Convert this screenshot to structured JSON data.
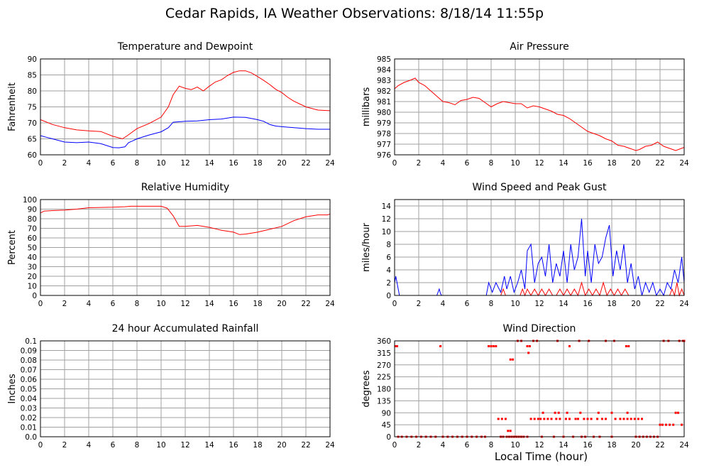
{
  "title": "Cedar Rapids, IA Weather Observations: 8/18/14 11:55p",
  "bottom_xlabel": "Local Time (hour)",
  "colors": {
    "series_red": "#ff0000",
    "series_blue": "#0000ff",
    "grid": "#a0a0a0"
  },
  "chart_data": [
    {
      "id": "temp",
      "type": "line",
      "title": "Temperature and Dewpoint",
      "xlabel": "",
      "ylabel": "Fahrenheit",
      "xlim": [
        0,
        24
      ],
      "ylim": [
        60,
        90
      ],
      "xticks": [
        0,
        2,
        4,
        6,
        8,
        10,
        12,
        14,
        16,
        18,
        20,
        22,
        24
      ],
      "yticks": [
        60,
        65,
        70,
        75,
        80,
        85,
        90
      ],
      "grid": true,
      "series": [
        {
          "color": "#ff0000",
          "x": [
            0,
            1,
            2,
            3,
            4,
            5,
            6,
            6.8,
            7.2,
            8,
            9,
            10,
            10.6,
            11,
            11.5,
            12,
            12.5,
            13,
            13.5,
            14,
            14.5,
            15,
            15.5,
            16,
            16.5,
            17,
            17.5,
            18,
            18.5,
            19,
            19.5,
            20,
            20.5,
            21,
            22,
            23,
            24
          ],
          "y": [
            71,
            69.5,
            68.5,
            67.8,
            67.5,
            67.3,
            65.8,
            65,
            66,
            68.2,
            69.8,
            71.8,
            75,
            78.8,
            81.5,
            80.8,
            80.4,
            81.2,
            80,
            81.5,
            82.8,
            83.5,
            84.8,
            85.8,
            86.3,
            86.3,
            85.6,
            84.5,
            83.3,
            82,
            80.5,
            79.5,
            78,
            76.8,
            75,
            74,
            73.8
          ]
        },
        {
          "color": "#0000ff",
          "x": [
            0,
            0.5,
            1,
            2,
            3,
            4,
            5,
            6,
            6.5,
            7,
            7.3,
            7.6,
            8,
            9,
            10,
            10.6,
            11,
            12,
            13,
            14,
            15,
            16,
            17,
            18,
            18.5,
            19,
            19.5,
            20,
            21,
            22,
            23,
            24
          ],
          "y": [
            66,
            65.5,
            65,
            64,
            63.8,
            64,
            63.5,
            62.3,
            62.2,
            62.5,
            63.8,
            64.3,
            65,
            66.2,
            67.2,
            68.5,
            70.2,
            70.5,
            70.6,
            71,
            71.2,
            71.8,
            71.7,
            71,
            70.5,
            69.5,
            69,
            68.8,
            68.5,
            68.2,
            68,
            68
          ]
        }
      ]
    },
    {
      "id": "pressure",
      "type": "line",
      "title": "Air Pressure",
      "xlabel": "",
      "ylabel": "millibars",
      "xlim": [
        0,
        24
      ],
      "ylim": [
        976,
        985
      ],
      "xticks": [
        0,
        2,
        4,
        6,
        8,
        10,
        12,
        14,
        16,
        18,
        20,
        22,
        24
      ],
      "yticks": [
        976,
        977,
        978,
        979,
        980,
        981,
        982,
        983,
        984,
        985
      ],
      "grid": true,
      "series": [
        {
          "color": "#ff0000",
          "x": [
            0,
            0.3,
            0.8,
            1.3,
            1.7,
            2,
            2.5,
            3,
            3.5,
            4,
            4.5,
            5,
            5.5,
            6,
            6.5,
            7,
            7.5,
            8,
            8.5,
            9,
            9.5,
            10,
            10.5,
            11,
            11.5,
            12,
            12.5,
            13,
            13.5,
            14,
            14.5,
            15,
            15.5,
            16,
            16.5,
            17,
            17.5,
            18,
            18.5,
            19,
            19.5,
            20,
            20.3,
            20.8,
            21.3,
            21.8,
            22.3,
            22.8,
            23.3,
            24
          ],
          "y": [
            982.2,
            982.5,
            982.8,
            983,
            983.2,
            982.8,
            982.5,
            982,
            981.5,
            981,
            980.9,
            980.7,
            981.1,
            981.2,
            981.4,
            981.3,
            980.9,
            980.5,
            980.8,
            981,
            980.9,
            980.8,
            980.8,
            980.4,
            980.6,
            980.5,
            980.3,
            980.1,
            979.8,
            979.7,
            979.4,
            979,
            978.6,
            978.2,
            978,
            977.8,
            977.5,
            977.3,
            976.9,
            976.8,
            976.6,
            976.4,
            976.5,
            976.8,
            976.9,
            977.2,
            976.8,
            976.6,
            976.4,
            976.7
          ]
        }
      ]
    },
    {
      "id": "humidity",
      "type": "line",
      "title": "Relative Humidity",
      "xlabel": "",
      "ylabel": "Percent",
      "xlim": [
        0,
        24
      ],
      "ylim": [
        0,
        100
      ],
      "xticks": [
        0,
        2,
        4,
        6,
        8,
        10,
        12,
        14,
        16,
        18,
        20,
        22,
        24
      ],
      "yticks": [
        0,
        10,
        20,
        30,
        40,
        50,
        60,
        70,
        80,
        90,
        100
      ],
      "grid": true,
      "series": [
        {
          "color": "#ff0000",
          "x": [
            0,
            0.3,
            1,
            2,
            3,
            4,
            5,
            6,
            7,
            7.5,
            8,
            9,
            10,
            10.5,
            11,
            11.5,
            12,
            13,
            14,
            14.5,
            15,
            16,
            16.5,
            17,
            18,
            19,
            20,
            21,
            22,
            23,
            23.8,
            24
          ],
          "y": [
            86,
            88,
            88.5,
            89,
            90,
            91.5,
            91.8,
            92,
            92.5,
            93,
            93,
            93,
            93,
            91,
            83,
            72,
            72,
            73,
            71,
            69.5,
            68,
            66,
            63.5,
            64,
            66,
            69,
            72,
            78,
            82,
            84,
            84,
            85
          ]
        }
      ]
    },
    {
      "id": "wind",
      "type": "line",
      "title": "Wind Speed and Peak Gust",
      "xlabel": "",
      "ylabel": "miles/hour",
      "xlim": [
        0,
        24
      ],
      "ylim": [
        0,
        15
      ],
      "xticks": [
        0,
        2,
        4,
        6,
        8,
        10,
        12,
        14,
        16,
        18,
        20,
        22,
        24
      ],
      "yticks": [
        0,
        2,
        4,
        6,
        8,
        10,
        12,
        14
      ],
      "grid": true,
      "series": [
        {
          "color": "#0000ff",
          "x": [
            0,
            0.1,
            0.2,
            0.3,
            0.4,
            3.5,
            3.7,
            3.8,
            3.9,
            7.6,
            7.8,
            8.1,
            8.4,
            8.8,
            9.1,
            9.3,
            9.6,
            9.9,
            10.2,
            10.5,
            10.8,
            11,
            11.3,
            11.6,
            11.9,
            12.2,
            12.5,
            12.8,
            13.1,
            13.4,
            13.7,
            14,
            14.3,
            14.6,
            14.9,
            15.2,
            15.5,
            15.8,
            16,
            16.3,
            16.6,
            16.9,
            17.2,
            17.5,
            17.8,
            18.1,
            18.4,
            18.7,
            19,
            19.3,
            19.6,
            19.9,
            20.2,
            20.5,
            20.8,
            21.1,
            21.4,
            21.7,
            22,
            22.3,
            22.6,
            22.9,
            23.2,
            23.5,
            23.8,
            24
          ],
          "y": [
            2,
            3,
            2,
            1,
            0,
            0,
            1,
            0.3,
            0,
            0,
            2,
            0.5,
            2,
            0.5,
            3,
            1,
            3,
            0.5,
            2,
            4,
            1,
            7,
            8,
            2,
            5,
            6,
            3,
            8,
            2,
            5,
            3,
            7,
            2,
            8,
            4,
            6,
            12,
            3,
            7,
            2,
            8,
            5,
            6,
            9,
            11,
            3,
            7,
            4,
            8,
            2,
            5,
            1,
            3,
            0,
            2,
            0.5,
            2,
            0,
            1,
            0,
            2,
            1,
            4,
            2,
            6,
            2
          ]
        },
        {
          "color": "#ff0000",
          "x": [
            0,
            8.8,
            9,
            9.2,
            9.4,
            10.4,
            10.6,
            10.8,
            11,
            11.3,
            11.6,
            11.9,
            12.2,
            12.5,
            12.8,
            13.1,
            13.4,
            13.7,
            14,
            14.3,
            14.6,
            14.9,
            15.2,
            15.5,
            15.8,
            16.1,
            16.4,
            16.7,
            17,
            17.3,
            17.6,
            17.9,
            18.2,
            18.5,
            18.8,
            19.1,
            19.4,
            22.8,
            23,
            23.2,
            23.4,
            23.6,
            23.8,
            24
          ],
          "y": [
            0,
            0,
            1,
            0,
            0,
            0,
            1,
            0,
            1,
            0,
            1,
            0,
            1,
            0,
            1,
            0,
            0,
            1,
            0,
            1,
            0,
            1,
            0,
            2,
            0,
            1,
            0,
            1,
            0,
            2,
            0,
            1,
            0,
            1,
            0,
            1,
            0,
            0,
            1,
            0,
            2,
            0,
            1,
            0
          ]
        }
      ]
    },
    {
      "id": "rain",
      "type": "line",
      "title": "24 hour Accumulated Rainfall",
      "xlabel": "",
      "ylabel": "Inches",
      "xlim": [
        0,
        24
      ],
      "ylim": [
        0,
        0.1
      ],
      "xticks": [
        0,
        2,
        4,
        6,
        8,
        10,
        12,
        14,
        16,
        18,
        20,
        22,
        24
      ],
      "yticks": [
        0.0,
        0.01,
        0.02,
        0.03,
        0.04,
        0.05,
        0.06,
        0.07,
        0.08,
        0.09,
        0.1
      ],
      "ytick_labels": [
        "0.0",
        "0.01",
        "0.02",
        "0.03",
        "0.04",
        "0.05",
        "0.06",
        "0.07",
        "0.08",
        "0.09",
        "0.1"
      ],
      "grid": true,
      "series": [
        {
          "color": "#ff0000",
          "x": [
            0,
            24
          ],
          "y": [
            0,
            0
          ]
        }
      ]
    },
    {
      "id": "direction",
      "type": "scatter",
      "title": "Wind Direction",
      "xlabel": "Local Time (hour)",
      "ylabel": "degrees",
      "xlim": [
        0,
        24
      ],
      "ylim": [
        0,
        360
      ],
      "xticks": [
        0,
        2,
        4,
        6,
        8,
        10,
        12,
        14,
        16,
        18,
        20,
        22,
        24
      ],
      "yticks": [
        0,
        45,
        90,
        135,
        180,
        225,
        270,
        315,
        360
      ],
      "grid": true,
      "series": [
        {
          "color": "#ff0000",
          "x": [
            0.1,
            0.2,
            3.8,
            7.8,
            8,
            8.2,
            8.4,
            9.6,
            9.8,
            11,
            11.2,
            11.1,
            14.5,
            19.2,
            19.4,
            0.3,
            0.6,
            1,
            1.4,
            1.8,
            2.2,
            2.6,
            3,
            3.4,
            4,
            4.4,
            4.8,
            5.2,
            5.6,
            6,
            6.4,
            6.8,
            7.2,
            7.5,
            8.8,
            9,
            9.3,
            9.4,
            9.6,
            9.5,
            9.7,
            9.9,
            10.1,
            10.3,
            10.5,
            10.7,
            11,
            12.2,
            13.2,
            14,
            14.8,
            15.5,
            15.8,
            16.5,
            17,
            18,
            20,
            20.3,
            20.6,
            20.9,
            21.2,
            21.5,
            21.8,
            8.6,
            8.9,
            9.2,
            11.3,
            11.6,
            11.9,
            12.1,
            12.4,
            12.7,
            13,
            13.4,
            13.7,
            14.2,
            14.5,
            15,
            15.2,
            15.7,
            16,
            16.3,
            16.8,
            17.2,
            17.5,
            18.3,
            18.7,
            19,
            19.3,
            19.6,
            19.9,
            20.2,
            20.5,
            12.3,
            13.3,
            13.6,
            14.3,
            15.4,
            16.9,
            18,
            19.3,
            22,
            22.2,
            22.5,
            22.8,
            23.1,
            23.3,
            23.5,
            23.8,
            10.2,
            10.5,
            11.5,
            11.8,
            13.5,
            15.3,
            16.1,
            17.5,
            18.2,
            22.3,
            22.7,
            23.6,
            23.9,
            24
          ],
          "y": [
            340,
            340,
            340,
            340,
            340,
            340,
            340,
            290,
            290,
            340,
            340,
            315,
            340,
            340,
            340,
            0,
            0,
            0,
            0,
            0,
            0,
            0,
            0,
            0,
            0,
            0,
            0,
            0,
            0,
            0,
            0,
            0,
            0,
            0,
            0,
            0,
            0,
            22,
            22,
            0,
            0,
            0,
            0,
            0,
            0,
            0,
            0,
            0,
            0,
            0,
            0,
            0,
            0,
            0,
            0,
            0,
            0,
            0,
            0,
            0,
            0,
            0,
            0,
            67,
            67,
            67,
            67,
            67,
            67,
            67,
            67,
            67,
            67,
            67,
            67,
            67,
            67,
            67,
            67,
            67,
            67,
            67,
            67,
            67,
            67,
            67,
            67,
            67,
            67,
            67,
            67,
            67,
            67,
            90,
            90,
            90,
            90,
            90,
            90,
            90,
            90,
            45,
            45,
            45,
            45,
            45,
            90,
            90,
            45,
            360,
            360,
            360,
            360,
            360,
            360,
            360,
            360,
            360,
            360,
            360,
            360,
            360,
            360
          ]
        }
      ]
    }
  ]
}
